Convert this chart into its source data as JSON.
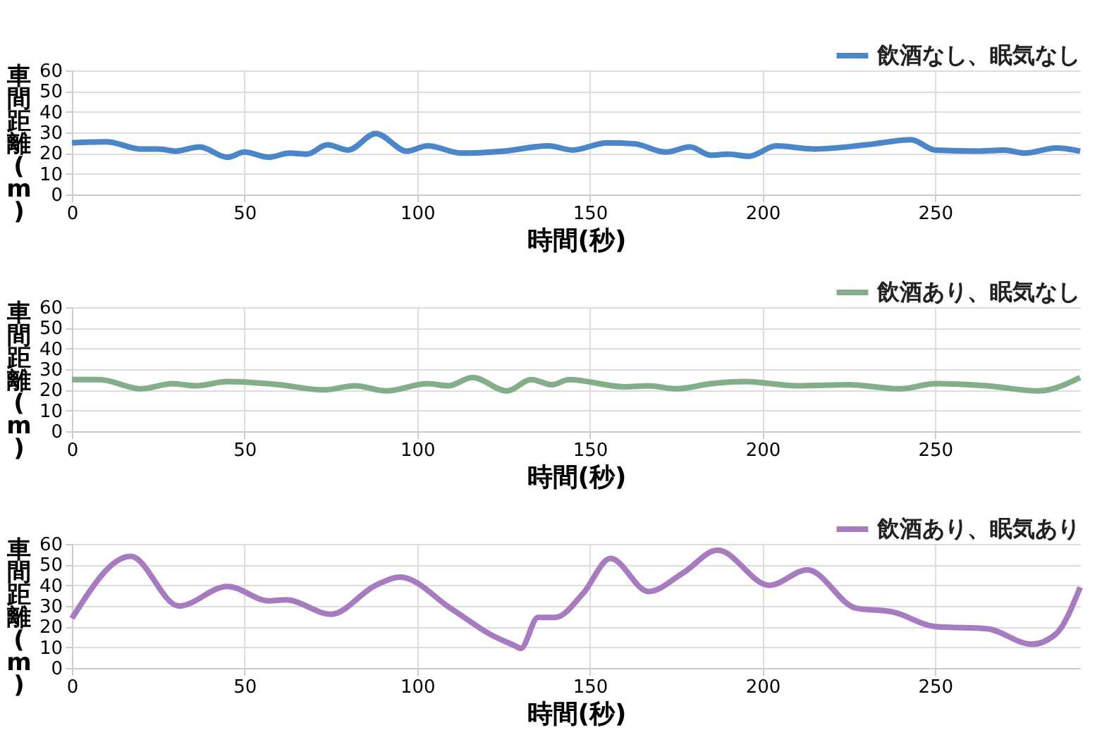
{
  "chart_data": [
    {
      "type": "line",
      "xlabel": "時間(秒)",
      "ylabel": "車間距離(m)",
      "xlim": [
        0,
        292
      ],
      "xticks": [
        0,
        50,
        100,
        150,
        200,
        250
      ],
      "ylim": [
        0,
        60
      ],
      "yticks": [
        0,
        10,
        20,
        30,
        40,
        50,
        60
      ],
      "grid": true,
      "legend": "top right",
      "x": [
        0,
        10,
        20,
        25,
        30,
        37,
        45,
        50,
        57,
        63,
        68,
        74,
        80,
        88,
        97,
        103,
        113,
        125,
        138,
        145,
        155,
        163,
        172,
        179,
        185,
        190,
        196,
        204,
        215,
        230,
        243,
        250,
        262,
        270,
        276,
        285,
        292
      ],
      "series": [
        {
          "name": "飲酒なし、眠気なし",
          "color": "#4a86c8",
          "values": [
            25,
            25.5,
            22,
            22,
            21,
            23,
            18,
            20.5,
            18,
            20,
            19.5,
            24,
            21.5,
            29.5,
            21,
            23.5,
            20,
            21,
            23.5,
            21.5,
            25,
            24.5,
            20.5,
            23,
            19,
            19.5,
            18.5,
            23.5,
            22,
            24,
            26.5,
            21.5,
            21,
            21.5,
            20,
            22.5,
            21
          ]
        }
      ]
    },
    {
      "type": "line",
      "xlabel": "時間(秒)",
      "ylabel": "車間距離(m)",
      "xlim": [
        0,
        292
      ],
      "xticks": [
        0,
        50,
        100,
        150,
        200,
        250
      ],
      "ylim": [
        0,
        60
      ],
      "yticks": [
        0,
        10,
        20,
        30,
        40,
        50,
        60
      ],
      "grid": true,
      "legend": "top right",
      "x": [
        0,
        8,
        20,
        29,
        36,
        45,
        60,
        73,
        82,
        91,
        103,
        109,
        116,
        126,
        133,
        139,
        144,
        160,
        167,
        175,
        185,
        195,
        210,
        225,
        240,
        250,
        265,
        280,
        292
      ],
      "series": [
        {
          "name": "飲酒あり、眠気なし",
          "color": "#84ad8a",
          "values": [
            25,
            25,
            20.5,
            23,
            22,
            24,
            22.5,
            20,
            22,
            19.5,
            23,
            22,
            26,
            19.5,
            25,
            22.5,
            25,
            21.5,
            22,
            20.5,
            23,
            24,
            22,
            22.5,
            20.5,
            23,
            22,
            19.5,
            26
          ]
        }
      ]
    },
    {
      "type": "line",
      "xlabel": "時間(秒)",
      "ylabel": "車間距離(m)",
      "xlim": [
        0,
        292
      ],
      "xticks": [
        0,
        50,
        100,
        150,
        200,
        250
      ],
      "ylim": [
        0,
        60
      ],
      "yticks": [
        0,
        10,
        20,
        30,
        40,
        50,
        60
      ],
      "grid": true,
      "legend": "top right",
      "x": [
        0,
        17,
        31,
        45,
        57,
        62,
        75,
        88,
        95,
        110,
        122,
        128,
        130,
        135,
        140,
        148,
        156,
        167,
        177,
        187,
        202,
        213,
        227,
        238,
        250,
        265,
        278,
        285,
        292
      ],
      "series": [
        {
          "name": "飲酒あり、眠気あり",
          "color": "#a77bbf",
          "values": [
            24,
            54,
            30,
            39.5,
            32.5,
            33,
            26,
            40,
            44,
            28.5,
            15.5,
            11,
            9.5,
            24.5,
            24.5,
            36,
            53,
            37,
            46,
            57,
            40,
            47.5,
            29,
            27,
            20,
            19,
            11.5,
            16.5,
            39
          ]
        }
      ]
    }
  ]
}
